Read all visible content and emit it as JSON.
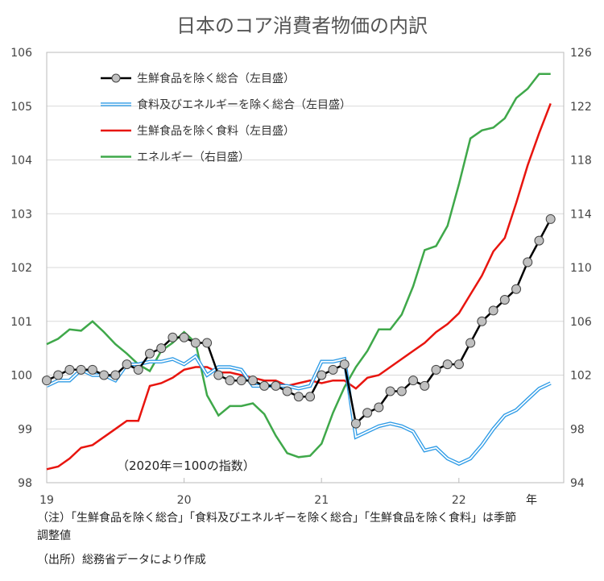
{
  "chart_data": {
    "type": "line",
    "title": "日本のコア消費者物価の内訳",
    "annotation": "（2020年＝100の指数）",
    "xlabel": "年",
    "x_ticks": [
      "19",
      "20",
      "21",
      "22"
    ],
    "x_start": "2019-01",
    "x_frequency": "monthly",
    "y_left": {
      "ylim": [
        98,
        106
      ],
      "ticks": [
        "98",
        "99",
        "100",
        "101",
        "102",
        "103",
        "104",
        "105",
        "106"
      ]
    },
    "y_right": {
      "ylim": [
        94,
        126
      ],
      "ticks": [
        "94",
        "98",
        "102",
        "106",
        "110",
        "114",
        "118",
        "122",
        "126"
      ]
    },
    "grid": true,
    "legend_position": "top-left",
    "series": [
      {
        "name": "生鮮食品を除く総合（左目盛）",
        "axis": "left",
        "color": "#000000",
        "marker": "circle",
        "values": [
          99.9,
          100.0,
          100.1,
          100.1,
          100.1,
          100.0,
          100.0,
          100.2,
          100.1,
          100.4,
          100.5,
          100.7,
          100.7,
          100.6,
          100.6,
          100.0,
          99.9,
          99.9,
          99.9,
          99.8,
          99.8,
          99.7,
          99.6,
          99.6,
          100.0,
          100.1,
          100.2,
          99.1,
          99.3,
          99.4,
          99.7,
          99.7,
          99.9,
          99.8,
          100.1,
          100.2,
          100.2,
          100.6,
          101.0,
          101.2,
          101.4,
          101.6,
          102.1,
          102.5,
          102.9
        ]
      },
      {
        "name": "食料及びエネルギーを除く総合（左目盛）",
        "axis": "left",
        "color": "#2e9be6",
        "double": true,
        "values": [
          99.8,
          99.9,
          99.9,
          100.1,
          100.0,
          100.0,
          99.9,
          100.2,
          100.2,
          100.25,
          100.25,
          100.3,
          100.2,
          100.35,
          100.0,
          100.15,
          100.15,
          100.1,
          99.8,
          99.8,
          99.8,
          99.8,
          99.75,
          99.8,
          100.25,
          100.25,
          100.3,
          98.85,
          98.95,
          99.05,
          99.1,
          99.05,
          98.95,
          98.6,
          98.65,
          98.45,
          98.35,
          98.45,
          98.7,
          99.0,
          99.25,
          99.35,
          99.55,
          99.75,
          99.85
        ]
      },
      {
        "name": "生鮮食品を除く食料（左目盛）",
        "axis": "left",
        "color": "#e8150f",
        "values": [
          98.25,
          98.3,
          98.45,
          98.65,
          98.7,
          98.85,
          99.0,
          99.15,
          99.15,
          99.8,
          99.85,
          99.95,
          100.1,
          100.15,
          100.15,
          100.05,
          100.05,
          100.0,
          99.95,
          99.9,
          99.9,
          99.8,
          99.85,
          99.9,
          99.85,
          99.9,
          99.9,
          99.75,
          99.95,
          100.0,
          100.15,
          100.3,
          100.45,
          100.6,
          100.8,
          100.95,
          101.15,
          101.5,
          101.85,
          102.3,
          102.55,
          103.2,
          103.9,
          104.5,
          105.05
        ]
      },
      {
        "name": "エネルギー（右目盛）",
        "axis": "right",
        "color": "#3fa84a",
        "values": [
          104.3,
          104.7,
          105.4,
          105.3,
          106.0,
          105.2,
          104.3,
          103.6,
          102.8,
          102.3,
          103.8,
          104.4,
          105.2,
          104.4,
          100.5,
          99.0,
          99.7,
          99.7,
          99.9,
          99.1,
          97.5,
          96.2,
          95.9,
          96.0,
          96.9,
          99.2,
          101.1,
          102.6,
          103.8,
          105.4,
          105.4,
          106.5,
          108.6,
          111.3,
          111.6,
          113.1,
          116.2,
          119.6,
          120.2,
          120.4,
          121.1,
          122.6,
          123.3,
          124.4,
          124.4
        ]
      }
    ]
  },
  "notes": {
    "note1": "（注）「生鮮食品を除く総合」「食料及びエネルギーを除く総合」「生鮮食品を除く食料」は季節",
    "note1b": "調整値",
    "source": "（出所）総務省データにより作成"
  }
}
